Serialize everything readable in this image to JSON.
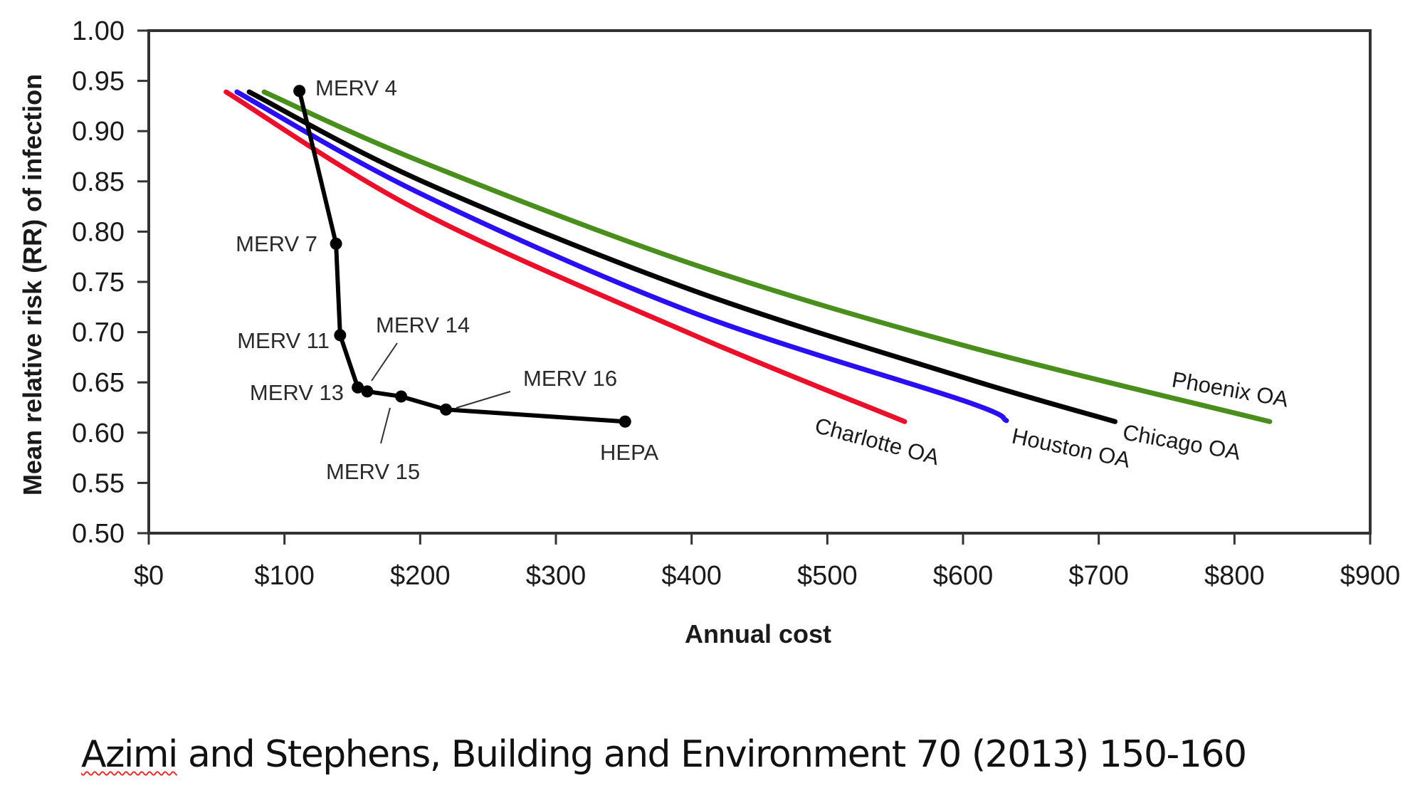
{
  "chart_data": {
    "type": "line",
    "title": "",
    "xlabel": "Annual cost",
    "ylabel": "Mean relative risk (RR) of infection",
    "xlim": [
      0,
      900
    ],
    "ylim": [
      0.5,
      1.0
    ],
    "x_ticks": [
      0,
      100,
      200,
      300,
      400,
      500,
      600,
      700,
      800,
      900
    ],
    "x_tick_labels": [
      "$0",
      "$100",
      "$200",
      "$300",
      "$400",
      "$500",
      "$600",
      "$700",
      "$800",
      "$900"
    ],
    "y_ticks": [
      0.5,
      0.55,
      0.6,
      0.65,
      0.7,
      0.75,
      0.8,
      0.85,
      0.9,
      0.95,
      1.0
    ],
    "y_tick_labels": [
      "0.50",
      "0.55",
      "0.60",
      "0.65",
      "0.70",
      "0.75",
      "0.80",
      "0.85",
      "0.90",
      "0.95",
      "1.00"
    ],
    "grid": false,
    "legend": "none (direct labels at line ends)",
    "series": [
      {
        "name": "Charlotte OA",
        "color": "#e8102a",
        "points": [
          [
            57,
            0.939
          ],
          [
            200,
            0.82
          ],
          [
            400,
            0.698
          ],
          [
            557,
            0.611
          ]
        ]
      },
      {
        "name": "Houston OA",
        "color": "#2a10f0",
        "points": [
          [
            65,
            0.939
          ],
          [
            200,
            0.838
          ],
          [
            400,
            0.72
          ],
          [
            600,
            0.632
          ],
          [
            632,
            0.612
          ]
        ]
      },
      {
        "name": "Chicago OA",
        "color": "#050505",
        "points": [
          [
            74,
            0.939
          ],
          [
            200,
            0.851
          ],
          [
            400,
            0.742
          ],
          [
            600,
            0.655
          ],
          [
            712,
            0.611
          ]
        ]
      },
      {
        "name": "Phoenix OA",
        "color": "#4a8f1e",
        "points": [
          [
            85,
            0.939
          ],
          [
            200,
            0.87
          ],
          [
            400,
            0.768
          ],
          [
            600,
            0.687
          ],
          [
            826,
            0.611
          ]
        ]
      }
    ],
    "filters": {
      "name": "Filter efficiency (MERV rating)",
      "color": "#000000",
      "points": [
        {
          "label": "MERV 4",
          "x": 111,
          "y": 0.94
        },
        {
          "label": "MERV 7",
          "x": 138,
          "y": 0.788
        },
        {
          "label": "MERV 11",
          "x": 141,
          "y": 0.697
        },
        {
          "label": "MERV 13",
          "x": 154,
          "y": 0.645
        },
        {
          "label": "MERV 14",
          "x": 161,
          "y": 0.641
        },
        {
          "label": "MERV 15",
          "x": 186,
          "y": 0.636
        },
        {
          "label": "MERV 16",
          "x": 219,
          "y": 0.623
        },
        {
          "label": "HEPA",
          "x": 351,
          "y": 0.611
        }
      ]
    }
  },
  "caption": {
    "author_first": "Azimi",
    "rest": " and Stephens, Building and Environment 70 (2013) 150-160"
  }
}
